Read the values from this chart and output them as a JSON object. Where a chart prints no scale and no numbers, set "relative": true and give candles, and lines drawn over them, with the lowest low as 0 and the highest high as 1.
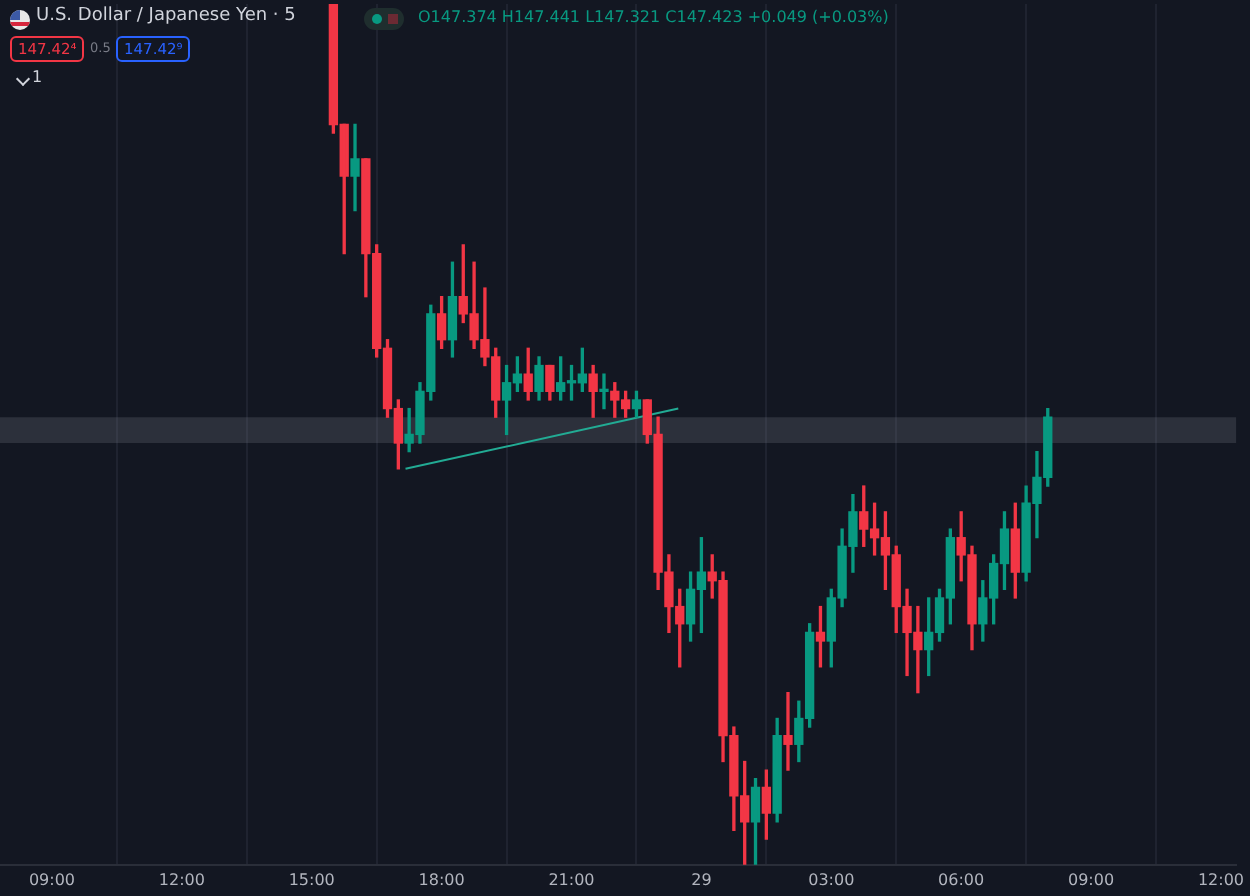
{
  "chart_data": {
    "type": "candlestick",
    "title": "U.S. Dollar / Japanese Yen · 5",
    "relative": true,
    "annotations": [
      "O147.374 H147.441 L147.321 C147.423 +0.049 (+0.03%)",
      "147.42⁴",
      "0.5",
      "147.42⁹",
      "1"
    ],
    "xlim": [
      "--11-28T07:48",
      "--11-29T12:21"
    ],
    "xticks": [
      {
        "value": "--11-28T09:00",
        "label": "09:00"
      },
      {
        "value": "--11-28T12:00",
        "label": "12:00"
      },
      {
        "value": "--11-28T15:00",
        "label": "15:00"
      },
      {
        "value": "--11-28T18:00",
        "label": "18:00"
      },
      {
        "value": "--11-28T21:00",
        "label": "21:00"
      },
      {
        "value": "--11-29T00:00",
        "label": "29"
      },
      {
        "value": "--11-29T03:00",
        "label": "03:00"
      },
      {
        "value": "--11-29T06:00",
        "label": "06:00"
      },
      {
        "value": "--11-29T09:00",
        "label": "09:00"
      },
      {
        "value": "--11-29T12:00",
        "label": "12:00"
      }
    ],
    "grid": "x",
    "x": [
      "--11-28T15:30",
      "--11-28T15:45",
      "--11-28T16:00",
      "--11-28T16:15",
      "--11-28T16:30",
      "--11-28T16:45",
      "--11-28T17:00",
      "--11-28T17:15",
      "--11-28T17:30",
      "--11-28T17:45",
      "--11-28T18:00",
      "--11-28T18:15",
      "--11-28T18:30",
      "--11-28T18:45",
      "--11-28T19:00",
      "--11-28T19:15",
      "--11-28T19:30",
      "--11-28T19:45",
      "--11-28T20:00",
      "--11-28T20:15",
      "--11-28T20:30",
      "--11-28T20:45",
      "--11-28T21:00",
      "--11-28T21:15",
      "--11-28T21:30",
      "--11-28T21:45",
      "--11-28T22:00",
      "--11-28T22:15",
      "--11-28T22:30",
      "--11-28T22:45",
      "--11-28T23:00",
      "--11-28T23:15",
      "--11-28T23:30",
      "--11-28T23:45",
      "--11-29T00:00",
      "--11-29T00:15",
      "--11-29T00:30",
      "--11-29T00:45",
      "--11-29T01:00",
      "--11-29T01:15",
      "--11-29T01:30",
      "--11-29T01:45",
      "--11-29T02:00",
      "--11-29T02:15",
      "--11-29T02:30",
      "--11-29T02:45",
      "--11-29T03:00",
      "--11-29T03:15",
      "--11-29T03:30",
      "--11-29T03:45",
      "--11-29T04:00",
      "--11-29T04:15",
      "--11-29T04:30",
      "--11-29T04:45",
      "--11-29T05:00",
      "--11-29T05:15",
      "--11-29T05:30",
      "--11-29T05:45",
      "--11-29T06:00",
      "--11-29T06:15",
      "--11-29T06:30",
      "--11-29T06:45",
      "--11-29T07:00",
      "--11-29T07:15",
      "--11-29T07:30",
      "--11-29T07:45",
      "--11-29T08:00"
    ],
    "ohlc": [
      [
        1.0,
        1.0,
        0.85,
        0.86
      ],
      [
        0.86,
        0.86,
        0.71,
        0.8
      ],
      [
        0.8,
        0.86,
        0.76,
        0.82
      ],
      [
        0.82,
        0.82,
        0.66,
        0.71
      ],
      [
        0.71,
        0.72,
        0.59,
        0.6
      ],
      [
        0.6,
        0.61,
        0.52,
        0.53
      ],
      [
        0.53,
        0.54,
        0.46,
        0.49
      ],
      [
        0.49,
        0.53,
        0.48,
        0.5
      ],
      [
        0.5,
        0.56,
        0.49,
        0.55
      ],
      [
        0.55,
        0.65,
        0.54,
        0.64
      ],
      [
        0.64,
        0.66,
        0.6,
        0.61
      ],
      [
        0.61,
        0.7,
        0.59,
        0.66
      ],
      [
        0.66,
        0.72,
        0.63,
        0.64
      ],
      [
        0.64,
        0.7,
        0.6,
        0.61
      ],
      [
        0.61,
        0.67,
        0.58,
        0.59
      ],
      [
        0.59,
        0.6,
        0.52,
        0.54
      ],
      [
        0.54,
        0.58,
        0.5,
        0.56
      ],
      [
        0.56,
        0.59,
        0.55,
        0.57
      ],
      [
        0.57,
        0.6,
        0.54,
        0.55
      ],
      [
        0.55,
        0.59,
        0.54,
        0.58
      ],
      [
        0.58,
        0.58,
        0.54,
        0.55
      ],
      [
        0.55,
        0.59,
        0.54,
        0.56
      ],
      [
        0.56,
        0.58,
        0.54,
        0.56
      ],
      [
        0.56,
        0.6,
        0.55,
        0.57
      ],
      [
        0.57,
        0.58,
        0.52,
        0.55
      ],
      [
        0.55,
        0.57,
        0.53,
        0.55
      ],
      [
        0.55,
        0.56,
        0.52,
        0.54
      ],
      [
        0.54,
        0.55,
        0.52,
        0.53
      ],
      [
        0.53,
        0.55,
        0.52,
        0.54
      ],
      [
        0.54,
        0.54,
        0.49,
        0.5
      ],
      [
        0.5,
        0.52,
        0.32,
        0.34
      ],
      [
        0.34,
        0.36,
        0.27,
        0.3
      ],
      [
        0.3,
        0.32,
        0.23,
        0.28
      ],
      [
        0.28,
        0.34,
        0.26,
        0.32
      ],
      [
        0.32,
        0.38,
        0.27,
        0.34
      ],
      [
        0.34,
        0.36,
        0.31,
        0.33
      ],
      [
        0.33,
        0.34,
        0.12,
        0.15
      ],
      [
        0.15,
        0.16,
        0.04,
        0.08
      ],
      [
        0.08,
        0.12,
        0.0,
        0.05
      ],
      [
        0.05,
        0.1,
        0.0,
        0.09
      ],
      [
        0.09,
        0.11,
        0.03,
        0.06
      ],
      [
        0.06,
        0.17,
        0.05,
        0.15
      ],
      [
        0.15,
        0.2,
        0.11,
        0.14
      ],
      [
        0.14,
        0.19,
        0.12,
        0.17
      ],
      [
        0.17,
        0.28,
        0.16,
        0.27
      ],
      [
        0.27,
        0.3,
        0.23,
        0.26
      ],
      [
        0.26,
        0.32,
        0.23,
        0.31
      ],
      [
        0.31,
        0.39,
        0.3,
        0.37
      ],
      [
        0.37,
        0.43,
        0.34,
        0.41
      ],
      [
        0.41,
        0.44,
        0.37,
        0.39
      ],
      [
        0.39,
        0.42,
        0.36,
        0.38
      ],
      [
        0.38,
        0.41,
        0.32,
        0.36
      ],
      [
        0.36,
        0.37,
        0.27,
        0.3
      ],
      [
        0.3,
        0.32,
        0.22,
        0.27
      ],
      [
        0.27,
        0.3,
        0.2,
        0.25
      ],
      [
        0.25,
        0.31,
        0.22,
        0.27
      ],
      [
        0.27,
        0.32,
        0.26,
        0.31
      ],
      [
        0.31,
        0.39,
        0.28,
        0.38
      ],
      [
        0.38,
        0.41,
        0.33,
        0.36
      ],
      [
        0.36,
        0.37,
        0.25,
        0.28
      ],
      [
        0.28,
        0.33,
        0.26,
        0.31
      ],
      [
        0.31,
        0.36,
        0.28,
        0.35
      ],
      [
        0.35,
        0.41,
        0.32,
        0.39
      ],
      [
        0.39,
        0.42,
        0.31,
        0.34
      ],
      [
        0.34,
        0.44,
        0.33,
        0.42
      ],
      [
        0.42,
        0.48,
        0.38,
        0.45
      ],
      [
        0.45,
        0.53,
        0.44,
        0.52
      ]
    ],
    "series": [
      {
        "type": "line",
        "x": [
          "--11-28T17:10",
          "--11-28T23:28"
        ],
        "values": [
          0.46,
          0.53
        ],
        "color": "#22ab94"
      }
    ],
    "bands": [
      {
        "axis": "y",
        "from": 0.49,
        "to": 0.52,
        "color": "#787b86"
      }
    ]
  }
}
